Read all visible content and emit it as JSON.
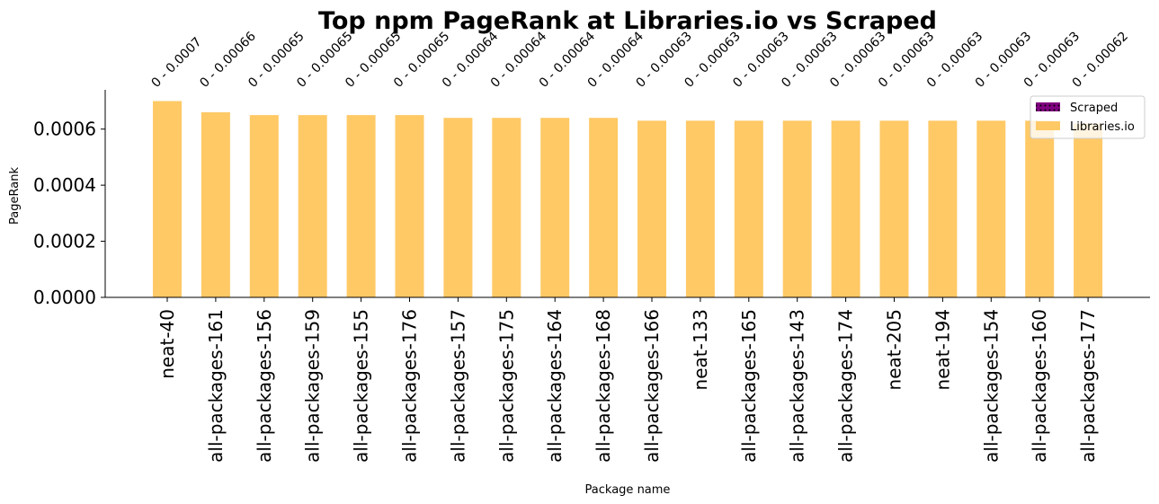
{
  "chart_data": {
    "type": "bar",
    "title": "Top npm PageRank at Libraries.io vs Scraped",
    "xlabel": "Package name",
    "ylabel": "PageRank",
    "ylim": [
      0,
      0.00074
    ],
    "yticks": [
      "0.0000",
      "0.0002",
      "0.0004",
      "0.0006"
    ],
    "ytick_values": [
      0,
      0.0002,
      0.0004,
      0.0006
    ],
    "grid": false,
    "legend_position": "top-right",
    "categories": [
      "neat-40",
      "all-packages-161",
      "all-packages-156",
      "all-packages-159",
      "all-packages-155",
      "all-packages-176",
      "all-packages-157",
      "all-packages-175",
      "all-packages-164",
      "all-packages-168",
      "all-packages-166",
      "neat-133",
      "all-packages-165",
      "all-packages-143",
      "all-packages-174",
      "neat-205",
      "neat-194",
      "all-packages-154",
      "all-packages-160",
      "all-packages-177"
    ],
    "series": [
      {
        "name": "Scraped",
        "color": "#800080",
        "pattern": "dotted",
        "values": [
          0,
          0,
          0,
          0,
          0,
          0,
          0,
          0,
          0,
          0,
          0,
          0,
          0,
          0,
          0,
          0,
          0,
          0,
          0,
          0
        ]
      },
      {
        "name": "Libraries.io",
        "color": "#ffc966",
        "values": [
          0.0007,
          0.00066,
          0.00065,
          0.00065,
          0.00065,
          0.00065,
          0.00064,
          0.00064,
          0.00064,
          0.00064,
          0.00063,
          0.00063,
          0.00063,
          0.00063,
          0.00063,
          0.00063,
          0.00063,
          0.00063,
          0.00063,
          0.00062
        ]
      }
    ],
    "annotations": [
      "0 - 0.0007",
      "0 - 0.00066",
      "0 - 0.00065",
      "0 - 0.00065",
      "0 - 0.00065",
      "0 - 0.00065",
      "0 - 0.00064",
      "0 - 0.00064",
      "0 - 0.00064",
      "0 - 0.00064",
      "0 - 0.00063",
      "0 - 0.00063",
      "0 - 0.00063",
      "0 - 0.00063",
      "0 - 0.00063",
      "0 - 0.00063",
      "0 - 0.00063",
      "0 - 0.00063",
      "0 - 0.00063",
      "0 - 0.00062"
    ]
  }
}
